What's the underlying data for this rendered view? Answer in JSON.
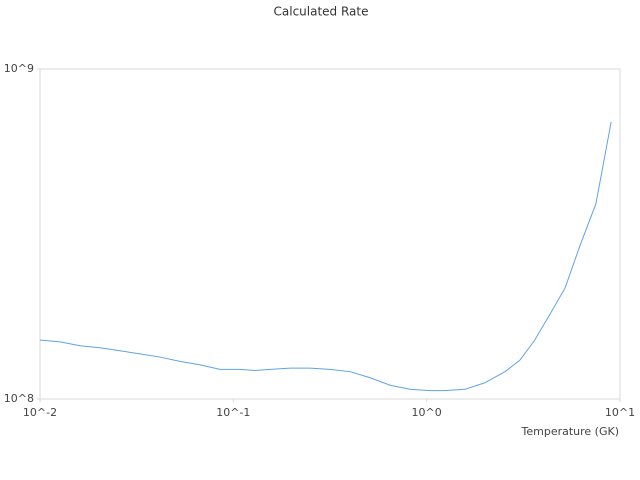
{
  "chart_data": {
    "type": "line",
    "title": "Calculated Rate",
    "x_label": "Temperature (GK)",
    "xscale": "log",
    "yscale": "log",
    "xlim": [
      0.01,
      10
    ],
    "ylim": [
      100000000,
      1000000000
    ],
    "xticks": [
      {
        "value": 0.01,
        "label": "10^-2"
      },
      {
        "value": 0.1,
        "label": "10^-1"
      },
      {
        "value": 1,
        "label": "10^0"
      },
      {
        "value": 10,
        "label": "10^1"
      }
    ],
    "yticks": [
      {
        "value": 100000000,
        "label": "10^8"
      },
      {
        "value": 1000000000,
        "label": "10^9"
      }
    ],
    "series": [
      {
        "color": "#5ea3e4",
        "x": [
          0.01,
          0.0127,
          0.0161,
          0.0204,
          0.0259,
          0.0329,
          0.0417,
          0.0529,
          0.0671,
          0.0852,
          0.108,
          0.129,
          0.155,
          0.197,
          0.249,
          0.316,
          0.402,
          0.51,
          0.65,
          0.82,
          1.04,
          1.23,
          1.58,
          2.0,
          2.54,
          3.03,
          3.6,
          4.35,
          5.2,
          6.2,
          7.5,
          9.0
        ],
        "values": [
          151000000,
          149000000,
          145000000,
          143000000,
          140000000,
          137000000,
          134000000,
          130000000,
          127000000,
          123000000,
          123000000,
          122000000,
          123000000,
          124000000,
          124000000,
          123000000,
          121000000,
          116000000,
          110000000,
          107000000,
          106000000,
          106000000,
          107000000,
          112000000,
          121000000,
          131000000,
          150000000,
          181000000,
          217000000,
          291000000,
          390000000,
          691000000
        ]
      }
    ]
  }
}
